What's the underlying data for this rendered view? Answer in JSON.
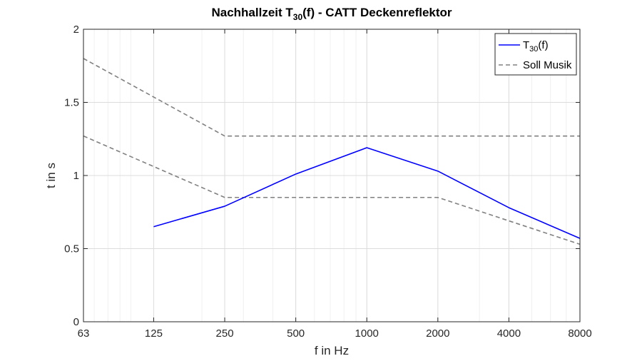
{
  "chart_data": {
    "type": "line",
    "title": {
      "prefix": "Nachhallzeit T",
      "subscript": "30",
      "suffix": "(f) - CATT Deckenreflektor"
    },
    "xlabel": "f in Hz",
    "ylabel": "t in s",
    "x_scale": "log2",
    "xlim": [
      63,
      8000
    ],
    "ylim": [
      0,
      2
    ],
    "x_ticks": [
      63,
      125,
      250,
      500,
      1000,
      2000,
      4000,
      8000
    ],
    "x_tick_labels": [
      "63",
      "125",
      "250",
      "500",
      "1000",
      "2000",
      "4000",
      "8000"
    ],
    "y_ticks": [
      0,
      0.5,
      1,
      1.5,
      2
    ],
    "y_tick_labels": [
      "0",
      "0.5",
      "1",
      "1.5",
      "2"
    ],
    "grid": true,
    "minor_grid": true,
    "legend_position": "top-right",
    "series": [
      {
        "id": "t30",
        "legend": {
          "prefix": "T",
          "subscript": "30",
          "suffix": "(f)"
        },
        "color": "#0000ff",
        "style": "solid",
        "x": [
          125,
          250,
          500,
          1000,
          2000,
          4000,
          8000
        ],
        "y": [
          0.65,
          0.79,
          1.01,
          1.19,
          1.03,
          0.78,
          0.57
        ]
      },
      {
        "id": "soll-upper",
        "legend": {
          "text": "Soll Musik"
        },
        "color": "#808080",
        "style": "dashed",
        "x": [
          63,
          250,
          8000
        ],
        "y": [
          1.8,
          1.27,
          1.27
        ]
      },
      {
        "id": "soll-lower",
        "legend": null,
        "color": "#808080",
        "style": "dashed",
        "x": [
          63,
          250,
          2000,
          8000
        ],
        "y": [
          1.27,
          0.85,
          0.85,
          0.53
        ]
      }
    ]
  }
}
